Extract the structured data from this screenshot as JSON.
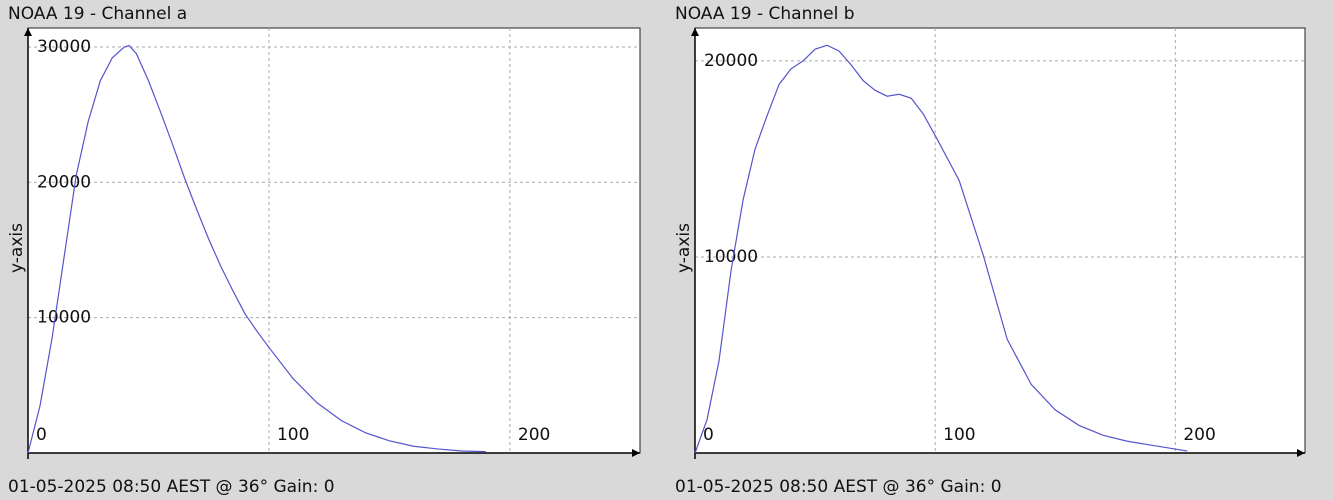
{
  "chart_data": [
    {
      "type": "line",
      "title": "NOAA 19 - Channel a",
      "ylabel": "y-axis",
      "footer": "01-05-2025 08:50 AEST @ 36° Gain: 0",
      "x": [
        0,
        5,
        10,
        15,
        20,
        25,
        30,
        35,
        40,
        42,
        45,
        50,
        55,
        60,
        65,
        70,
        75,
        80,
        85,
        90,
        95,
        100,
        110,
        120,
        130,
        140,
        150,
        160,
        170,
        180,
        190
      ],
      "values": [
        0,
        3500,
        8500,
        14500,
        20500,
        24500,
        27500,
        29200,
        30000,
        30100,
        29500,
        27500,
        25200,
        22800,
        20300,
        18000,
        15800,
        13800,
        12000,
        10300,
        9000,
        7800,
        5500,
        3700,
        2400,
        1500,
        900,
        500,
        300,
        150,
        100
      ],
      "color": "#5555cc",
      "xlim": [
        0,
        254
      ],
      "ylim": [
        0,
        31400
      ],
      "xticks": [
        0,
        100,
        200
      ],
      "yticks": [
        10000,
        20000,
        30000
      ],
      "grid": true
    },
    {
      "type": "line",
      "title": "NOAA 19 - Channel b",
      "ylabel": "y-axis",
      "footer": "01-05-2025 08:50 AEST @ 36° Gain: 0",
      "x": [
        0,
        5,
        10,
        15,
        20,
        25,
        30,
        35,
        40,
        45,
        50,
        55,
        60,
        65,
        70,
        75,
        80,
        85,
        90,
        95,
        100,
        110,
        120,
        130,
        140,
        150,
        160,
        170,
        180,
        190,
        200,
        205
      ],
      "values": [
        0,
        1700,
        4700,
        9300,
        12900,
        15500,
        17200,
        18800,
        19600,
        20000,
        20600,
        20800,
        20500,
        19800,
        19000,
        18500,
        18200,
        18300,
        18100,
        17300,
        16200,
        13900,
        10100,
        5800,
        3500,
        2200,
        1400,
        900,
        600,
        400,
        200,
        100
      ],
      "color": "#5555cc",
      "xlim": [
        0,
        254
      ],
      "ylim": [
        0,
        21680
      ],
      "xticks": [
        0,
        100,
        200
      ],
      "yticks": [
        10000,
        20000
      ],
      "grid": true
    }
  ]
}
